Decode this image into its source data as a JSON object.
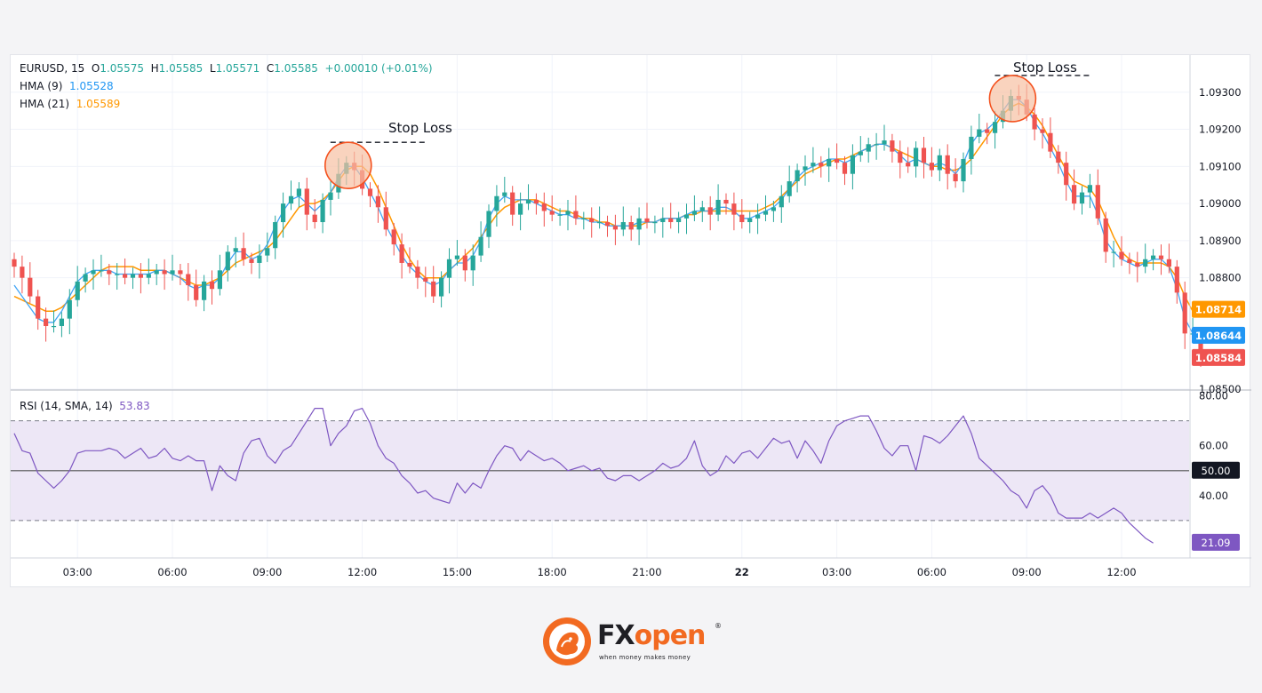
{
  "legend": {
    "symbol": "EURUSD, 15",
    "o_label": "O",
    "o_value": "1.05575",
    "h_label": "H",
    "h_value": "1.05585",
    "l_label": "L",
    "l_value": "1.05571",
    "c_label": "C",
    "c_value": "1.05585",
    "change": "+0.00010 (+0.01%)",
    "hma9_label": "HMA (9)",
    "hma9_value": "1.05528",
    "hma21_label": "HMA (21)",
    "hma21_value": "1.05589",
    "rsi_label": "RSI (14, SMA, 14)",
    "rsi_value": "53.83"
  },
  "annotations": [
    {
      "label": "Stop Loss"
    },
    {
      "label": "Stop Loss"
    }
  ],
  "colors": {
    "up": "#26a69a",
    "down": "#ef5350",
    "hma9": "#42a5f5",
    "hma21": "#ff9800",
    "rsi": "#7e57c2",
    "rsi_band": "#ede7f6",
    "circle_fill": "#f7c1a3",
    "circle_stroke": "#f4511e"
  },
  "footer": {
    "brand_fx": "FX",
    "brand_open": "open",
    "reg": "®",
    "tagline": "when money makes money"
  },
  "chart_data": [
    {
      "type": "candlestick",
      "title": "EURUSD, 15",
      "x_axis": {
        "tick_labels": [
          "03:00",
          "06:00",
          "09:00",
          "12:00",
          "15:00",
          "18:00",
          "21:00",
          "22",
          "03:00",
          "06:00",
          "09:00",
          "12:00"
        ],
        "tick_index": [
          8,
          20,
          32,
          44,
          56,
          68,
          80,
          92,
          104,
          116,
          128,
          140
        ]
      },
      "y_axis": {
        "ylim": [
          1.085,
          1.094
        ],
        "tick_labels": [
          "1.09300",
          "1.09200",
          "1.09100",
          "1.09000",
          "1.08900",
          "1.08800",
          "1.08500"
        ],
        "tick_values": [
          1.093,
          1.092,
          1.091,
          1.09,
          1.089,
          1.088,
          1.085
        ]
      },
      "price_labels": [
        {
          "text": "1.08714",
          "value": 1.08714,
          "color": "#ff9800"
        },
        {
          "text": "1.08644",
          "value": 1.08644,
          "color": "#2196f3"
        },
        {
          "text": "1.08584",
          "value": 1.08584,
          "color": "#ef5350"
        }
      ],
      "close": [
        1.0883,
        1.088,
        1.0875,
        1.0869,
        1.0867,
        1.0867,
        1.0869,
        1.0874,
        1.0879,
        1.0881,
        1.0882,
        1.0882,
        1.0881,
        1.0881,
        1.088,
        1.0881,
        1.088,
        1.0881,
        1.0882,
        1.0881,
        1.0882,
        1.0881,
        1.0878,
        1.0874,
        1.0879,
        1.0877,
        1.0882,
        1.0887,
        1.0888,
        1.0885,
        1.0884,
        1.0886,
        1.0888,
        1.0895,
        1.09,
        1.0902,
        1.0904,
        1.0897,
        1.0895,
        1.0901,
        1.0903,
        1.0908,
        1.0911,
        1.0909,
        1.0904,
        1.0902,
        1.0899,
        1.0893,
        1.0889,
        1.0884,
        1.0883,
        1.088,
        1.0879,
        1.0875,
        1.088,
        1.0885,
        1.0886,
        1.0882,
        1.0886,
        1.0891,
        1.0898,
        1.0902,
        1.0903,
        1.0897,
        1.09,
        1.0901,
        1.09,
        1.0898,
        1.0897,
        1.0897,
        1.0898,
        1.0896,
        1.0896,
        1.0895,
        1.0895,
        1.0894,
        1.0893,
        1.0895,
        1.0893,
        1.0896,
        1.0895,
        1.0895,
        1.0896,
        1.0895,
        1.0896,
        1.0897,
        1.0898,
        1.0899,
        1.0897,
        1.0901,
        1.09,
        1.0897,
        1.0895,
        1.0896,
        1.0897,
        1.0898,
        1.0899,
        1.0902,
        1.0906,
        1.0909,
        1.091,
        1.0911,
        1.091,
        1.0912,
        1.0911,
        1.0908,
        1.0913,
        1.0914,
        1.0916,
        1.0916,
        1.0917,
        1.0914,
        1.0911,
        1.091,
        1.0915,
        1.0911,
        1.0909,
        1.0913,
        1.0908,
        1.0906,
        1.0912,
        1.0918,
        1.092,
        1.0919,
        1.0922,
        1.0925,
        1.0929,
        1.0928,
        1.0924,
        1.092,
        1.0919,
        1.0914,
        1.0911,
        1.0905,
        1.09,
        1.0903,
        1.0905,
        1.0896,
        1.0887,
        1.0887,
        1.0885,
        1.0884,
        1.0883,
        1.0885,
        1.0886,
        1.0885,
        1.0883,
        1.0876,
        1.0865,
        1.0865,
        1.0859
      ],
      "series": [
        {
          "name": "HMA (9)",
          "values": [
            1.0878,
            1.0875,
            1.0872,
            1.0869,
            1.0868,
            1.0868,
            1.0871,
            1.0875,
            1.0879,
            1.0881,
            1.0882,
            1.0882,
            1.0882,
            1.0881,
            1.0881,
            1.0881,
            1.0881,
            1.0881,
            1.0882,
            1.0882,
            1.0881,
            1.088,
            1.0878,
            1.0877,
            1.0878,
            1.0878,
            1.088,
            1.0884,
            1.0887,
            1.0887,
            1.0885,
            1.0886,
            1.0889,
            1.0894,
            1.0898,
            1.0901,
            1.0902,
            1.09,
            1.0898,
            1.09,
            1.0903,
            1.0907,
            1.091,
            1.091,
            1.0907,
            1.0903,
            1.0899,
            1.0894,
            1.089,
            1.0886,
            1.0883,
            1.0881,
            1.0879,
            1.0878,
            1.0879,
            1.0882,
            1.0884,
            1.0884,
            1.0886,
            1.089,
            1.0896,
            1.09,
            1.0902,
            1.0901,
            1.0901,
            1.0901,
            1.09,
            1.0899,
            1.0898,
            1.0897,
            1.0897,
            1.0896,
            1.0896,
            1.0895,
            1.0895,
            1.0894,
            1.0894,
            1.0894,
            1.0894,
            1.0895,
            1.0895,
            1.0895,
            1.0896,
            1.0896,
            1.0896,
            1.0897,
            1.0898,
            1.0898,
            1.0898,
            1.0899,
            1.0899,
            1.0898,
            1.0896,
            1.0896,
            1.0897,
            1.0898,
            1.0899,
            1.0901,
            1.0904,
            1.0907,
            1.0909,
            1.091,
            1.0911,
            1.0912,
            1.0912,
            1.0911,
            1.0912,
            1.0914,
            1.0915,
            1.0916,
            1.0916,
            1.0915,
            1.0913,
            1.0911,
            1.0912,
            1.0911,
            1.091,
            1.0911,
            1.091,
            1.0908,
            1.0911,
            1.0916,
            1.0919,
            1.092,
            1.0922,
            1.0925,
            1.0928,
            1.0928,
            1.0926,
            1.0922,
            1.0919,
            1.0915,
            1.0911,
            1.0906,
            1.0902,
            1.0902,
            1.0902,
            1.0897,
            1.089,
            1.0887,
            1.0885,
            1.0884,
            1.0883,
            1.0884,
            1.0885,
            1.0885,
            1.0883,
            1.0877,
            1.0869,
            1.0865,
            1.0864
          ]
        },
        {
          "name": "HMA (21)",
          "values": [
            1.0875,
            1.0874,
            1.0873,
            1.0872,
            1.0871,
            1.0871,
            1.0872,
            1.0874,
            1.0876,
            1.0878,
            1.088,
            1.0882,
            1.0883,
            1.0883,
            1.0883,
            1.0883,
            1.0882,
            1.0882,
            1.0882,
            1.0882,
            1.0881,
            1.088,
            1.0879,
            1.0878,
            1.0878,
            1.0879,
            1.088,
            1.0882,
            1.0884,
            1.0885,
            1.0886,
            1.0887,
            1.0888,
            1.089,
            1.0893,
            1.0896,
            1.0899,
            1.09,
            1.09,
            1.0901,
            1.0903,
            1.0906,
            1.0909,
            1.091,
            1.091,
            1.0908,
            1.0904,
            1.0899,
            1.0894,
            1.0889,
            1.0885,
            1.0882,
            1.088,
            1.088,
            1.088,
            1.0882,
            1.0884,
            1.0886,
            1.0888,
            1.0891,
            1.0894,
            1.0897,
            1.0899,
            1.09,
            1.0901,
            1.0901,
            1.0901,
            1.09,
            1.0899,
            1.0898,
            1.0898,
            1.0897,
            1.0896,
            1.0896,
            1.0895,
            1.0895,
            1.0894,
            1.0894,
            1.0894,
            1.0894,
            1.0895,
            1.0895,
            1.0896,
            1.0896,
            1.0896,
            1.0897,
            1.0897,
            1.0898,
            1.0898,
            1.0898,
            1.0898,
            1.0898,
            1.0898,
            1.0898,
            1.0898,
            1.0899,
            1.09,
            1.0902,
            1.0904,
            1.0906,
            1.0908,
            1.0909,
            1.091,
            1.0911,
            1.0912,
            1.0912,
            1.0913,
            1.0914,
            1.0915,
            1.0916,
            1.0916,
            1.0915,
            1.0914,
            1.0913,
            1.0912,
            1.0911,
            1.091,
            1.091,
            1.0909,
            1.0909,
            1.091,
            1.0912,
            1.0915,
            1.0918,
            1.0921,
            1.0924,
            1.0926,
            1.0927,
            1.0926,
            1.0924,
            1.0921,
            1.0917,
            1.0913,
            1.0909,
            1.0906,
            1.0905,
            1.0904,
            1.0901,
            1.0896,
            1.0891,
            1.0887,
            1.0885,
            1.0884,
            1.0884,
            1.0884,
            1.0884,
            1.0883,
            1.088,
            1.0875,
            1.0871,
            1.087
          ]
        }
      ]
    },
    {
      "type": "line",
      "title": "RSI (14, SMA, 14)",
      "y_axis": {
        "ylim": [
          15,
          82
        ],
        "tick_labels": [
          "80.00",
          "60.00",
          "40.00"
        ],
        "tick_values": [
          80,
          60,
          40
        ],
        "band": [
          30,
          70
        ],
        "midline": 50
      },
      "value_labels": [
        {
          "text": "50.00",
          "value": 50
        },
        {
          "text": "21.09",
          "value": 21.09
        }
      ],
      "series": [
        {
          "name": "RSI",
          "values": [
            65,
            58,
            57,
            49,
            46,
            43,
            46,
            50,
            57,
            58,
            58,
            58,
            59,
            58,
            55,
            57,
            59,
            55,
            56,
            59,
            55,
            54,
            56,
            54,
            54,
            42,
            52,
            48,
            46,
            57,
            62,
            63,
            56,
            53,
            58,
            60,
            65,
            70,
            75,
            75,
            60,
            65,
            68,
            74,
            75,
            69,
            60,
            55,
            53,
            48,
            45,
            41,
            42,
            39,
            38,
            37,
            45,
            41,
            45,
            43,
            50,
            56,
            60,
            59,
            54,
            58,
            56,
            54,
            55,
            53,
            50,
            51,
            52,
            50,
            51,
            47,
            46,
            48,
            48,
            46,
            48,
            50,
            53,
            51,
            52,
            55,
            62,
            52,
            48,
            50,
            56,
            53,
            57,
            58,
            55,
            59,
            63,
            61,
            62,
            55,
            62,
            58,
            53,
            62,
            68,
            70,
            71,
            72,
            72,
            66,
            59,
            56,
            60,
            60,
            50,
            64,
            63,
            61,
            64,
            68,
            72,
            65,
            55,
            52,
            49,
            46,
            42,
            40,
            35,
            42,
            44,
            40,
            33,
            31,
            31,
            31,
            33,
            31,
            33,
            35,
            33,
            29,
            26,
            23,
            21
          ]
        }
      ]
    }
  ]
}
